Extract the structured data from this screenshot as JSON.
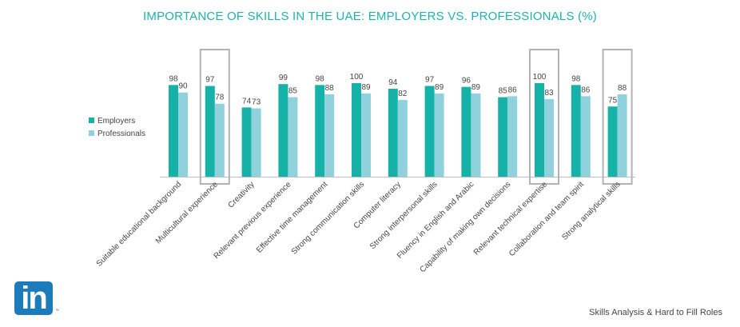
{
  "chart_data": {
    "type": "bar",
    "title": "IMPORTANCE OF SKILLS IN THE UAE: EMPLOYERS VS. PROFESSIONALS (%)",
    "categories": [
      "Suitable educational background",
      "Multicultural experience",
      "Creativity",
      "Relevant previous experience",
      "Effective time management",
      "Strong communication skills",
      "Computer literacy",
      "Strong interpersonal skills",
      "Fluency in English and Arabic",
      "Capability of making own decisions",
      "Relevant technical expertise",
      "Collaboration and team spirit",
      "Strong analytical skills"
    ],
    "series": [
      {
        "name": "Employers",
        "color": "#16b2a8",
        "values": [
          98,
          97,
          74,
          99,
          98,
          100,
          94,
          97,
          96,
          85,
          100,
          98,
          75
        ]
      },
      {
        "name": "Professionals",
        "color": "#8fd1dc",
        "values": [
          90,
          78,
          73,
          85,
          88,
          89,
          82,
          89,
          89,
          86,
          83,
          86,
          88
        ]
      }
    ],
    "highlighted_categories": [
      "Multicultural experience",
      "Relevant technical expertise",
      "Strong analytical skills"
    ],
    "ylim": [
      0,
      100
    ],
    "legend": "left",
    "grid": false
  },
  "footer": {
    "text": "Skills Analysis & Hard to Fill Roles"
  },
  "logo": {
    "text": "in",
    "tm": "™",
    "color": "#1c7bbb"
  }
}
